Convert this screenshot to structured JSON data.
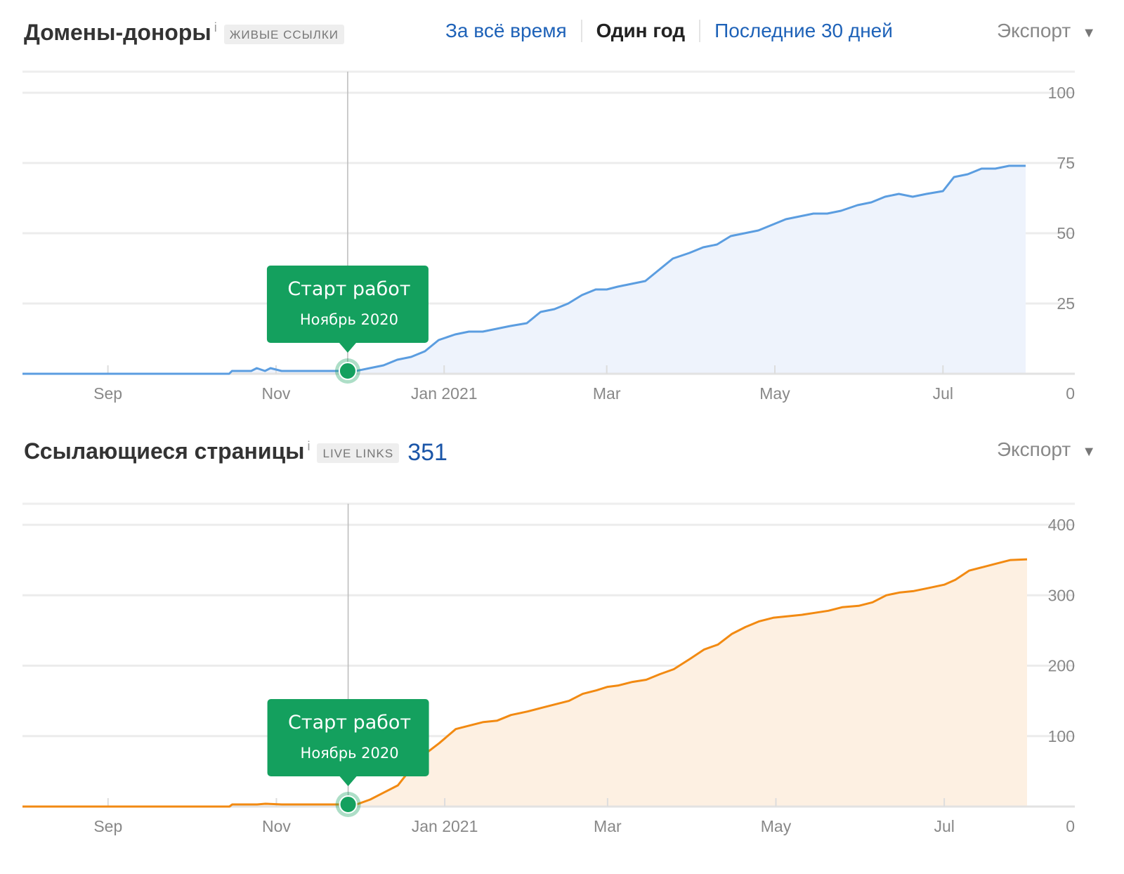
{
  "panel1": {
    "title": "Домены-доноры",
    "info_icon": "i",
    "tag": "ЖИВЫЕ ССЫЛКИ",
    "tabs": [
      {
        "label": "За всё время",
        "active": false
      },
      {
        "label": "Один год",
        "active": true
      },
      {
        "label": "Последние 30 дней",
        "active": false
      }
    ],
    "export_label": "Экспорт",
    "caret": "▼"
  },
  "panel2": {
    "title": "Ссылающиеся страницы",
    "info_icon": "i",
    "tag": "LIVE LINKS",
    "count": "351",
    "export_label": "Экспорт",
    "caret": "▼"
  },
  "colors": {
    "blue_line": "#5b9de0",
    "blue_fill": "#eef3fc",
    "orange_line": "#f28a12",
    "orange_fill": "#fdf0e2",
    "annotation": "#14a05e",
    "grid": "#ececec"
  },
  "chart_data": [
    {
      "type": "area",
      "x_tick_labels": [
        "Sep",
        "Nov",
        "Jan 2021",
        "Mar",
        "May",
        "Jul"
      ],
      "x_ticks": [
        "2020-09-01",
        "2020-11-01",
        "2021-01-01",
        "2021-03-01",
        "2021-05-01",
        "2021-07-01"
      ],
      "y_tick_labels": [
        "0",
        "25",
        "50",
        "75",
        "100"
      ],
      "ylim": [
        0,
        100
      ],
      "grid": true,
      "series": [
        {
          "color": "#5b9de0",
          "points": [
            [
              "2020-08-01",
              0
            ],
            [
              "2020-10-15",
              0
            ],
            [
              "2020-10-16",
              1
            ],
            [
              "2020-10-23",
              1
            ],
            [
              "2020-10-25",
              2
            ],
            [
              "2020-10-28",
              1
            ],
            [
              "2020-10-30",
              2
            ],
            [
              "2020-11-03",
              1
            ],
            [
              "2020-11-30",
              1
            ],
            [
              "2020-12-05",
              2
            ],
            [
              "2020-12-10",
              3
            ],
            [
              "2020-12-15",
              5
            ],
            [
              "2020-12-20",
              6
            ],
            [
              "2020-12-25",
              8
            ],
            [
              "2020-12-30",
              12
            ],
            [
              "2021-01-05",
              14
            ],
            [
              "2021-01-10",
              15
            ],
            [
              "2021-01-15",
              15
            ],
            [
              "2021-01-20",
              16
            ],
            [
              "2021-01-25",
              17
            ],
            [
              "2021-01-31",
              18
            ],
            [
              "2021-02-05",
              22
            ],
            [
              "2021-02-10",
              23
            ],
            [
              "2021-02-15",
              25
            ],
            [
              "2021-02-20",
              28
            ],
            [
              "2021-02-25",
              30
            ],
            [
              "2021-03-01",
              30
            ],
            [
              "2021-03-05",
              31
            ],
            [
              "2021-03-10",
              32
            ],
            [
              "2021-03-15",
              33
            ],
            [
              "2021-03-20",
              37
            ],
            [
              "2021-03-25",
              41
            ],
            [
              "2021-03-31",
              43
            ],
            [
              "2021-04-05",
              45
            ],
            [
              "2021-04-10",
              46
            ],
            [
              "2021-04-15",
              49
            ],
            [
              "2021-04-20",
              50
            ],
            [
              "2021-04-25",
              51
            ],
            [
              "2021-04-30",
              53
            ],
            [
              "2021-05-05",
              55
            ],
            [
              "2021-05-10",
              56
            ],
            [
              "2021-05-15",
              57
            ],
            [
              "2021-05-20",
              57
            ],
            [
              "2021-05-25",
              58
            ],
            [
              "2021-05-31",
              60
            ],
            [
              "2021-06-05",
              61
            ],
            [
              "2021-06-10",
              63
            ],
            [
              "2021-06-15",
              64
            ],
            [
              "2021-06-20",
              63
            ],
            [
              "2021-06-25",
              64
            ],
            [
              "2021-07-01",
              65
            ],
            [
              "2021-07-05",
              70
            ],
            [
              "2021-07-10",
              71
            ],
            [
              "2021-07-15",
              73
            ],
            [
              "2021-07-20",
              73
            ],
            [
              "2021-07-25",
              74
            ],
            [
              "2021-07-31",
              74
            ]
          ]
        }
      ],
      "annotation": {
        "date": "2020-11-27",
        "value": 1,
        "title": "Старт работ",
        "subtitle": "Ноябрь 2020"
      }
    },
    {
      "type": "area",
      "x_tick_labels": [
        "Sep",
        "Nov",
        "Jan 2021",
        "Mar",
        "May",
        "Jul"
      ],
      "x_ticks": [
        "2020-09-01",
        "2020-11-01",
        "2021-01-01",
        "2021-03-01",
        "2021-05-01",
        "2021-07-01"
      ],
      "y_tick_labels": [
        "0",
        "100",
        "200",
        "300",
        "400"
      ],
      "ylim": [
        0,
        400
      ],
      "grid": true,
      "series": [
        {
          "color": "#f28a12",
          "points": [
            [
              "2020-08-01",
              0
            ],
            [
              "2020-10-15",
              0
            ],
            [
              "2020-10-16",
              3
            ],
            [
              "2020-10-25",
              3
            ],
            [
              "2020-10-28",
              4
            ],
            [
              "2020-11-03",
              3
            ],
            [
              "2020-11-30",
              3
            ],
            [
              "2020-12-05",
              10
            ],
            [
              "2020-12-10",
              20
            ],
            [
              "2020-12-15",
              30
            ],
            [
              "2020-12-20",
              55
            ],
            [
              "2020-12-25",
              75
            ],
            [
              "2020-12-30",
              90
            ],
            [
              "2021-01-05",
              110
            ],
            [
              "2021-01-10",
              115
            ],
            [
              "2021-01-15",
              120
            ],
            [
              "2021-01-20",
              122
            ],
            [
              "2021-01-25",
              130
            ],
            [
              "2021-01-31",
              135
            ],
            [
              "2021-02-05",
              140
            ],
            [
              "2021-02-10",
              145
            ],
            [
              "2021-02-15",
              150
            ],
            [
              "2021-02-20",
              160
            ],
            [
              "2021-02-25",
              165
            ],
            [
              "2021-03-01",
              170
            ],
            [
              "2021-03-05",
              172
            ],
            [
              "2021-03-10",
              177
            ],
            [
              "2021-03-15",
              180
            ],
            [
              "2021-03-20",
              188
            ],
            [
              "2021-03-25",
              195
            ],
            [
              "2021-03-31",
              210
            ],
            [
              "2021-04-05",
              223
            ],
            [
              "2021-04-10",
              230
            ],
            [
              "2021-04-15",
              245
            ],
            [
              "2021-04-20",
              255
            ],
            [
              "2021-04-25",
              263
            ],
            [
              "2021-04-30",
              268
            ],
            [
              "2021-05-05",
              270
            ],
            [
              "2021-05-10",
              272
            ],
            [
              "2021-05-15",
              275
            ],
            [
              "2021-05-20",
              278
            ],
            [
              "2021-05-25",
              283
            ],
            [
              "2021-05-31",
              285
            ],
            [
              "2021-06-05",
              290
            ],
            [
              "2021-06-10",
              300
            ],
            [
              "2021-06-15",
              304
            ],
            [
              "2021-06-20",
              306
            ],
            [
              "2021-06-25",
              310
            ],
            [
              "2021-07-01",
              315
            ],
            [
              "2021-07-05",
              322
            ],
            [
              "2021-07-10",
              335
            ],
            [
              "2021-07-15",
              340
            ],
            [
              "2021-07-20",
              345
            ],
            [
              "2021-07-25",
              350
            ],
            [
              "2021-07-31",
              351
            ]
          ]
        }
      ],
      "annotation": {
        "date": "2020-11-27",
        "value": 3,
        "title": "Старт работ",
        "subtitle": "Ноябрь 2020"
      }
    }
  ]
}
